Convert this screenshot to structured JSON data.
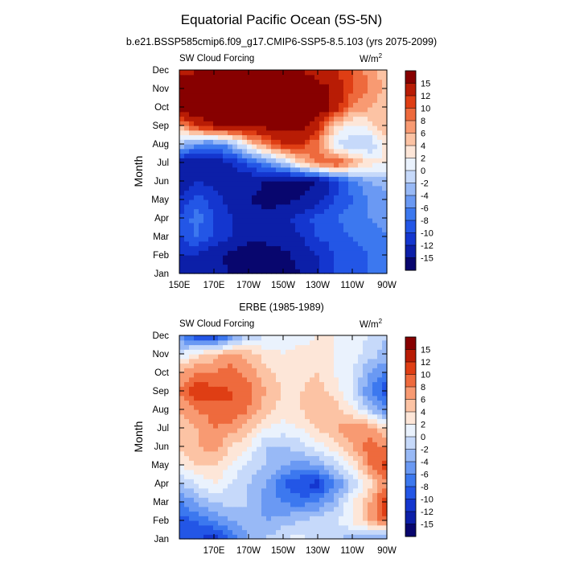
{
  "page": {
    "title": "Equatorial Pacific Ocean (5S-5N)"
  },
  "colorbar": {
    "levels": [
      -15,
      -12,
      -10,
      -8,
      -6,
      -4,
      -2,
      0,
      2,
      4,
      6,
      8,
      10,
      12,
      15
    ],
    "colors": [
      "#08066e",
      "#0c1fa8",
      "#1436cf",
      "#2356e6",
      "#3c78ef",
      "#6a99f3",
      "#98b9f6",
      "#c6d9fa",
      "#eaf2fd",
      "#fde6d8",
      "#fcc3a4",
      "#f89a72",
      "#ee6a3d",
      "#df3e14",
      "#b81c05",
      "#870000"
    ],
    "label_levels": [
      15,
      12,
      10,
      8,
      6,
      4,
      2,
      0,
      -2,
      -4,
      -6,
      -8,
      -10,
      -12,
      -15
    ],
    "label_strings": [
      "15",
      "12",
      "10",
      "8",
      "6",
      "4",
      "2",
      "0",
      "-2",
      "-4",
      "-6",
      "-8",
      "-10",
      "-12",
      "-15"
    ]
  },
  "chart_data": [
    {
      "type": "heatmap",
      "title": "b.e21.BSSP585cmip6.f09_g17.CMIP6-SSP5-8.5.103 (yrs 2075-2099)",
      "left_string": "SW Cloud Forcing",
      "units_base": "W/m",
      "units_exp": "2",
      "ylabel": "Month",
      "y_categories": [
        "Jan",
        "Feb",
        "Mar",
        "Apr",
        "May",
        "Jun",
        "Jul",
        "Aug",
        "Sep",
        "Oct",
        "Nov",
        "Dec"
      ],
      "x_tick_labels": [
        "150E",
        "170E",
        "170W",
        "150W",
        "130W",
        "110W",
        "90W"
      ],
      "x_tick_values": [
        150,
        170,
        190,
        210,
        230,
        250,
        270
      ],
      "xlim": [
        150,
        270
      ],
      "x": [
        150,
        160,
        170,
        180,
        190,
        200,
        210,
        220,
        230,
        240,
        250,
        260,
        270
      ],
      "y": [
        1,
        2,
        3,
        4,
        5,
        6,
        7,
        8,
        9,
        10,
        11,
        12
      ],
      "z": [
        [
          -12,
          -13,
          -14,
          -15,
          -16,
          -16,
          -16,
          -15,
          -12,
          -10,
          -9,
          -8,
          -7
        ],
        [
          -12,
          -12,
          -14,
          -16,
          -17,
          -17,
          -16,
          -14,
          -12,
          -10,
          -9,
          -8,
          -7
        ],
        [
          -10,
          -8,
          -10,
          -12,
          -14,
          -14,
          -13,
          -12,
          -10,
          -9,
          -8,
          -7,
          -6
        ],
        [
          -10,
          -7,
          -10,
          -12,
          -13,
          -14,
          -13,
          -11,
          -9,
          -8,
          -7,
          -6,
          -5
        ],
        [
          -12,
          -9,
          -11,
          -13,
          -15,
          -16,
          -16,
          -15,
          -13,
          -10,
          -8,
          -6,
          -5
        ],
        [
          -14,
          -12,
          -13,
          -14,
          -14,
          -15,
          -16,
          -16,
          -15,
          -11,
          -7,
          -4,
          -3
        ],
        [
          -14,
          -14,
          -14,
          -12,
          -9,
          -6,
          -2,
          4,
          9,
          11,
          7,
          3,
          2
        ],
        [
          -2,
          -6,
          -7,
          -4,
          3,
          8,
          12,
          12,
          8,
          0,
          -2,
          -2,
          3
        ],
        [
          6,
          12,
          15,
          16,
          16,
          16,
          16,
          16,
          13,
          4,
          1,
          3,
          6
        ],
        [
          18,
          18,
          18,
          18,
          18,
          18,
          18,
          18,
          18,
          14,
          8,
          6,
          4
        ],
        [
          18,
          18,
          18,
          18,
          18,
          18,
          18,
          18,
          17,
          14,
          10,
          8,
          5
        ],
        [
          13,
          15,
          16,
          16,
          16,
          17,
          16,
          15,
          13,
          12,
          10,
          7,
          5
        ]
      ]
    },
    {
      "type": "heatmap",
      "title": "ERBE (1985-1989)",
      "left_string": "SW Cloud Forcing",
      "units_base": "W/m",
      "units_exp": "2",
      "ylabel": "Month",
      "y_categories": [
        "Jan",
        "Feb",
        "Mar",
        "Apr",
        "May",
        "Jun",
        "Jul",
        "Aug",
        "Sep",
        "Oct",
        "Nov",
        "Dec"
      ],
      "x_tick_labels": [
        "170E",
        "170W",
        "150W",
        "130W",
        "110W",
        "90W"
      ],
      "x_tick_values": [
        170,
        190,
        210,
        230,
        250,
        270
      ],
      "xlim": [
        150,
        270
      ],
      "x": [
        150,
        160,
        170,
        180,
        190,
        200,
        210,
        220,
        230,
        240,
        250,
        260,
        270
      ],
      "y": [
        1,
        2,
        3,
        4,
        5,
        6,
        7,
        8,
        9,
        10,
        11,
        12
      ],
      "z": [
        [
          -10,
          -9,
          -12,
          -8,
          -4,
          -2,
          0,
          1,
          -1,
          -2,
          -3,
          -4,
          -6
        ],
        [
          -9,
          -8,
          -6,
          -4,
          -2,
          -4,
          -3,
          -2,
          -1,
          0,
          2,
          6,
          10
        ],
        [
          -6,
          -4,
          -2,
          -1,
          -2,
          -5,
          -6,
          -7,
          -6,
          -3,
          2,
          6,
          12
        ],
        [
          -2,
          0,
          2,
          0,
          -2,
          -4,
          -8,
          -10,
          -11,
          -6,
          -2,
          3,
          8
        ],
        [
          2,
          4,
          4,
          2,
          -1,
          -2,
          -4,
          -5,
          -4,
          -1,
          2,
          8,
          11
        ],
        [
          4,
          6,
          7,
          4,
          2,
          -2,
          -2,
          -1,
          1,
          3,
          6,
          9,
          8
        ],
        [
          5,
          6,
          8,
          7,
          5,
          2,
          1,
          2,
          4,
          6,
          8,
          7,
          3
        ],
        [
          6,
          8,
          9,
          10,
          8,
          5,
          3,
          4,
          6,
          5,
          2,
          -2,
          -6
        ],
        [
          8,
          12,
          11,
          10,
          9,
          6,
          4,
          4,
          5,
          3,
          0,
          -6,
          -10
        ],
        [
          6,
          8,
          8,
          9,
          7,
          5,
          3,
          3,
          4,
          2,
          0,
          -4,
          -6
        ],
        [
          0,
          3,
          5,
          7,
          5,
          3,
          2,
          3,
          3,
          2,
          1,
          -1,
          -3
        ],
        [
          -6,
          -10,
          -12,
          -6,
          -2,
          0,
          1,
          1,
          2,
          2,
          1,
          0,
          -2
        ]
      ]
    }
  ]
}
